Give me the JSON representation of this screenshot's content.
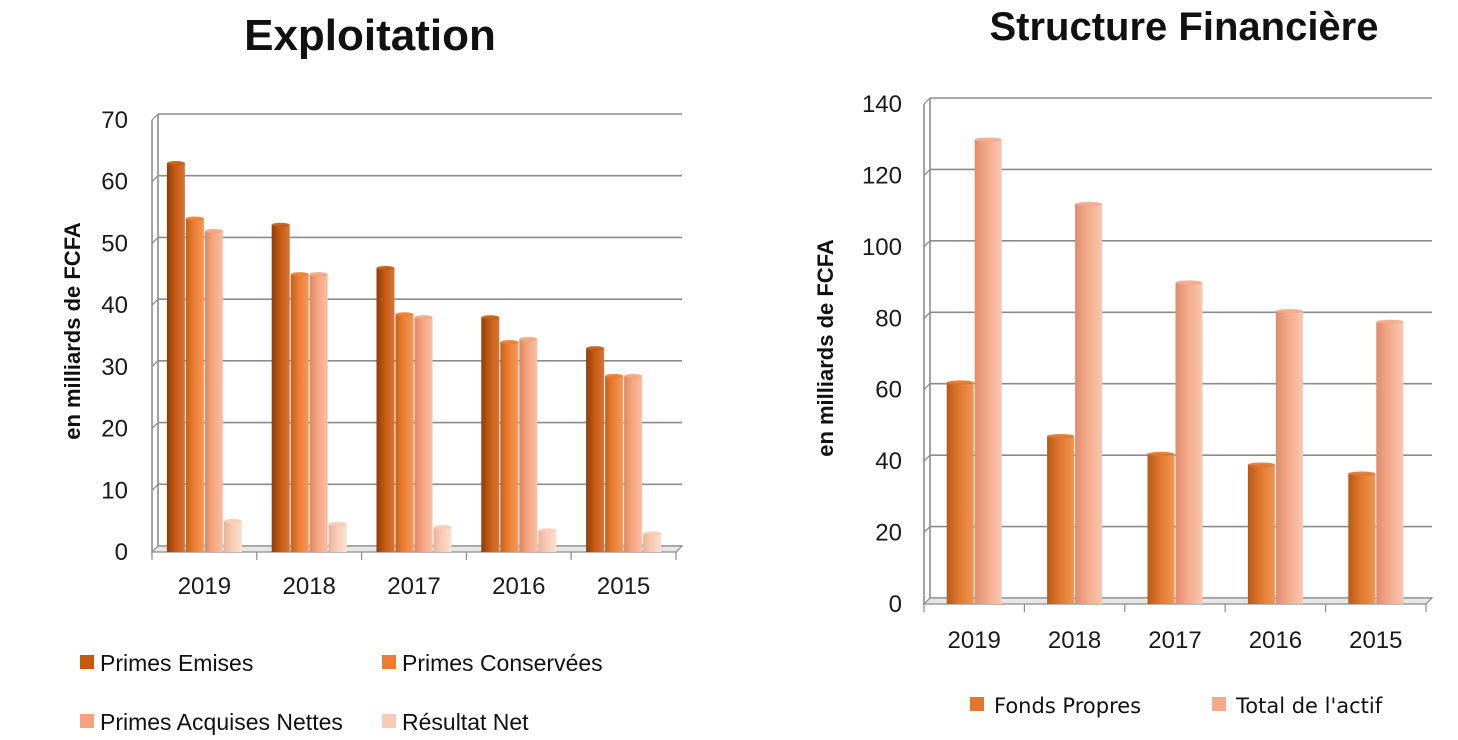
{
  "chart_data": [
    {
      "type": "bar",
      "title": "Exploitation",
      "ylabel": "en milliards de FCFA",
      "xlabel": "",
      "ylim": [
        0,
        70
      ],
      "yticks": [
        0,
        10,
        20,
        30,
        40,
        50,
        60,
        70
      ],
      "grid": true,
      "legend_position": "bottom",
      "categories": [
        "2019",
        "2018",
        "2017",
        "2016",
        "2015"
      ],
      "series": [
        {
          "name": "Primes Emises",
          "color": "#C55A11",
          "values": [
            63,
            53,
            46,
            38,
            33
          ]
        },
        {
          "name": "Primes Conservées",
          "color": "#ED7D31",
          "values": [
            54,
            45,
            38.5,
            34,
            28.5
          ]
        },
        {
          "name": "Primes Acquises Nettes",
          "color": "#F4A57F",
          "values": [
            52,
            45,
            38,
            34.5,
            28.5
          ]
        },
        {
          "name": "Résultat Net",
          "color": "#F8CBB5",
          "values": [
            5,
            4.5,
            4,
            3.5,
            3
          ]
        }
      ]
    },
    {
      "type": "bar",
      "title": "Structure Financière",
      "ylabel": "en milliards de FCFA",
      "xlabel": "",
      "ylim": [
        0,
        140
      ],
      "yticks": [
        0,
        20,
        40,
        60,
        80,
        100,
        120,
        140
      ],
      "grid": true,
      "legend_position": "bottom",
      "categories": [
        "2019",
        "2018",
        "2017",
        "2016",
        "2015"
      ],
      "series": [
        {
          "name": "Fonds Propres",
          "color": "#E0772D",
          "values": [
            62,
            47,
            42,
            39,
            36.5
          ]
        },
        {
          "name": "Total de l'actif",
          "color": "#F4A98A",
          "values": [
            130,
            112,
            90,
            82,
            79
          ]
        }
      ]
    }
  ]
}
